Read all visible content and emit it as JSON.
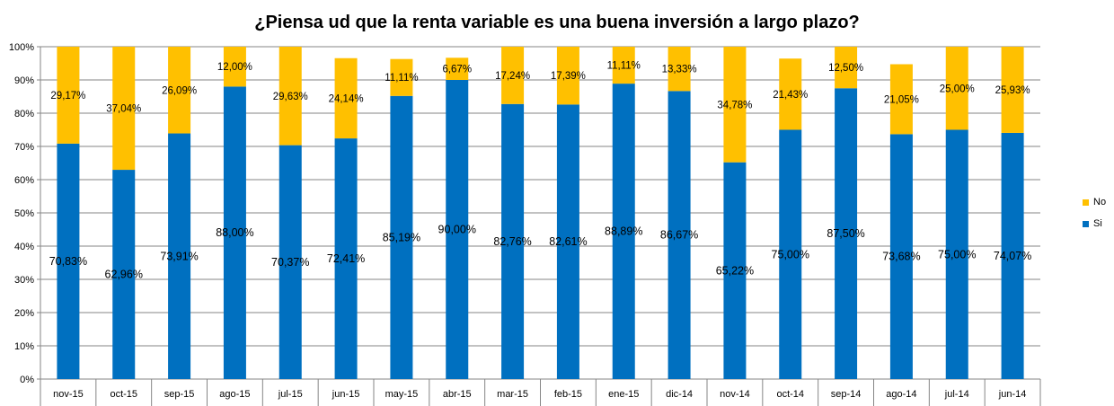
{
  "chart_data": {
    "type": "bar",
    "stacked": true,
    "title": "¿Piensa ud que la renta variable es una buena inversión a largo plazo?",
    "categories": [
      "nov-15",
      "oct-15",
      "sep-15",
      "ago-15",
      "jul-15",
      "jun-15",
      "may-15",
      "abr-15",
      "mar-15",
      "feb-15",
      "ene-15",
      "dic-14",
      "nov-14",
      "oct-14",
      "sep-14",
      "ago-14",
      "jul-14",
      "jun-14"
    ],
    "series": [
      {
        "name": "Si",
        "color": "#0070C0",
        "values": [
          70.83,
          62.96,
          73.91,
          88.0,
          70.37,
          72.41,
          85.19,
          90.0,
          82.76,
          82.61,
          88.89,
          86.67,
          65.22,
          75.0,
          87.5,
          73.68,
          75.0,
          74.07
        ],
        "labels": [
          "70,83%",
          "62,96%",
          "73,91%",
          "88,00%",
          "70,37%",
          "72,41%",
          "85,19%",
          "90,00%",
          "82,76%",
          "82,61%",
          "88,89%",
          "86,67%",
          "65,22%",
          "75,00%",
          "87,50%",
          "73,68%",
          "75,00%",
          "74,07%"
        ]
      },
      {
        "name": "No",
        "color": "#FFC000",
        "values": [
          29.17,
          37.04,
          26.09,
          12.0,
          29.63,
          24.14,
          11.11,
          6.67,
          17.24,
          17.39,
          11.11,
          13.33,
          34.78,
          21.43,
          12.5,
          21.05,
          25.0,
          25.93
        ],
        "labels": [
          "29,17%",
          "37,04%",
          "26,09%",
          "12,00%",
          "29,63%",
          "24,14%",
          "11,11%",
          "6,67%",
          "17,24%",
          "17,39%",
          "11,11%",
          "13,33%",
          "34,78%",
          "21,43%",
          "12,50%",
          "21,05%",
          "25,00%",
          "25,93%"
        ]
      }
    ],
    "ylim": [
      0,
      100
    ],
    "yticks": [
      "0%",
      "10%",
      "20%",
      "30%",
      "40%",
      "50%",
      "60%",
      "70%",
      "80%",
      "90%",
      "100%"
    ],
    "grid": true,
    "legend_position": "right"
  }
}
